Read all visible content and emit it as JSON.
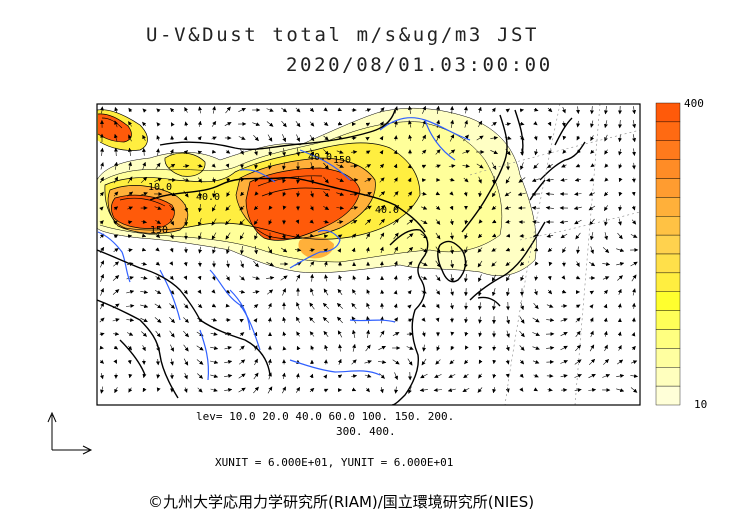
{
  "title": {
    "line1": "U-V&Dust total m/s&ug/m3 JST",
    "line2": "2020/08/01.03:00:00"
  },
  "colorbar": {
    "max_label": "400",
    "min_label": "10",
    "colors": [
      "#ff5a0a",
      "#ff6a12",
      "#ff7a1c",
      "#ff8c26",
      "#ff9c30",
      "#ffb03a",
      "#ffc244",
      "#ffd24e",
      "#ffe04a",
      "#ffee40",
      "#ffff2e",
      "#ffff58",
      "#ffff80",
      "#ffffa0",
      "#ffffbe",
      "#ffffd8"
    ]
  },
  "contour_labels": [
    "10.0",
    "150",
    "40.0",
    "40.0",
    "150",
    "40.0"
  ],
  "levels": {
    "line1": "lev= 10.0 20.0 40.0 60.0 100. 150. 200.",
    "line2": "300. 400."
  },
  "units": "XUNIT = 6.000E+01, YUNIT = 6.000E+01",
  "credit": "©九州大学応用力学研究所(RIAM)/国立環境研究所(NIES)"
}
